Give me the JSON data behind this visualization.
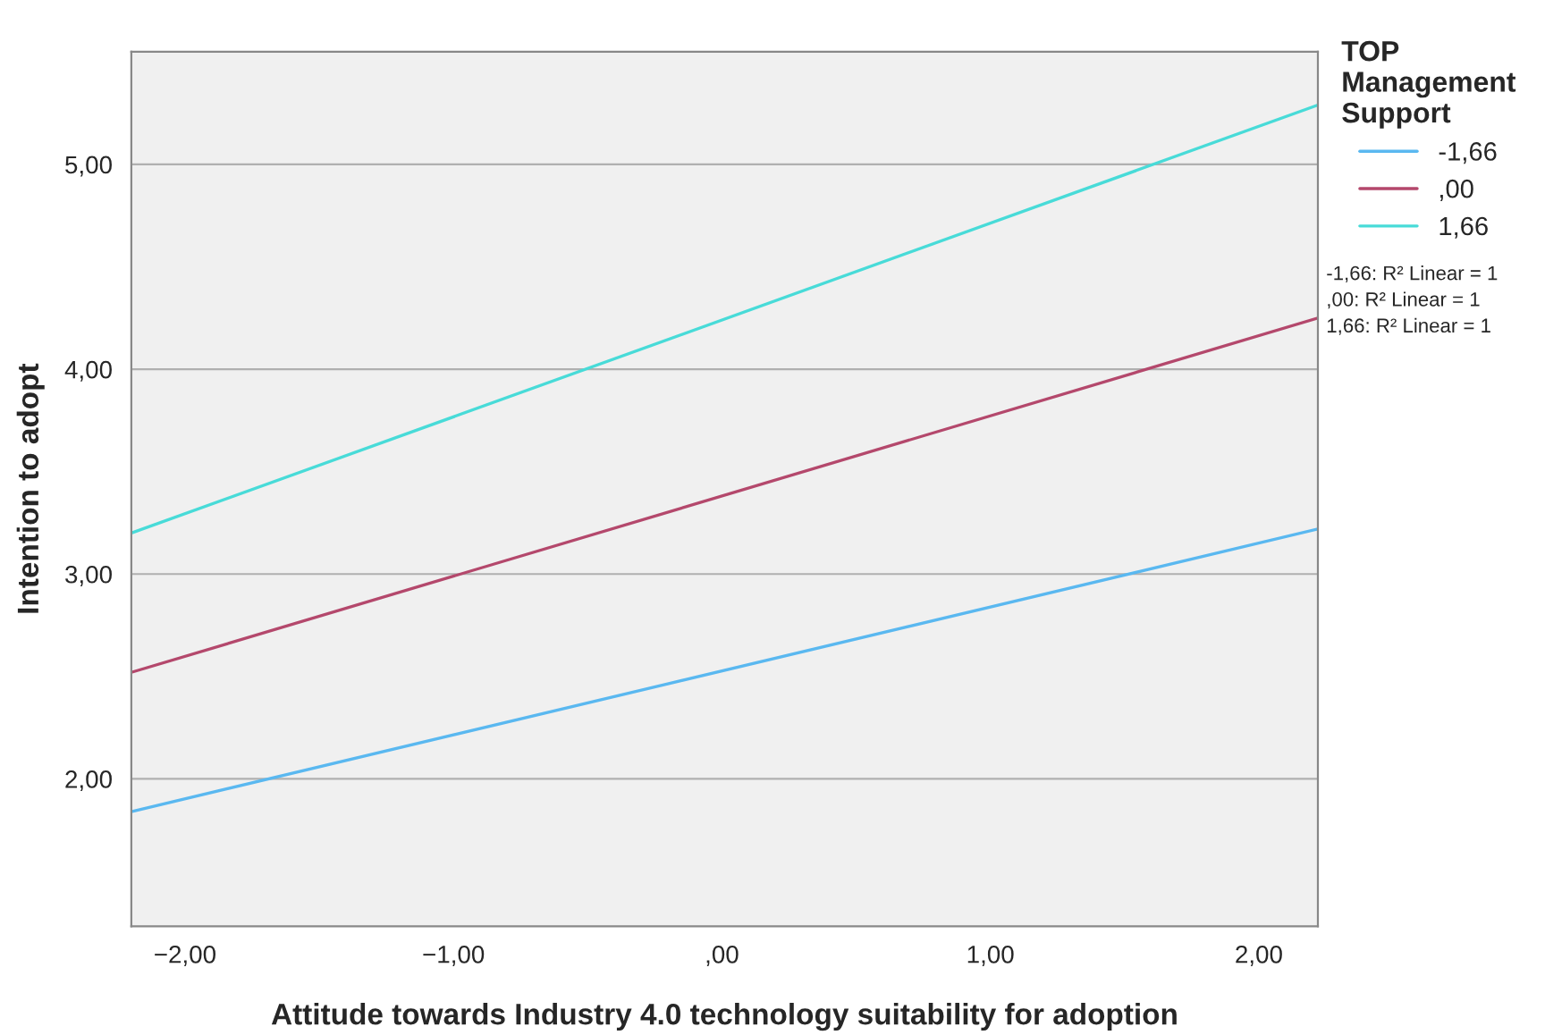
{
  "chart_data": {
    "type": "line",
    "xlabel": "Attitude towards Industry 4.0 technology suitability for adoption",
    "ylabel": "Intention to adopt",
    "legend_title": "TOP\nManagement\nSupport",
    "x": [
      -2.2,
      2.22
    ],
    "series": [
      {
        "name": "-1,66",
        "color": "#5ab8f0",
        "values": [
          1.84,
          3.22
        ]
      },
      {
        "name": ",00",
        "color": "#b4486c",
        "values": [
          2.52,
          4.25
        ]
      },
      {
        "name": "1,66",
        "color": "#48dbd8",
        "values": [
          3.2,
          5.29
        ]
      }
    ],
    "xlim": [
      -2.2,
      2.22
    ],
    "ylim": [
      1.28,
      5.55
    ],
    "xticks": [
      {
        "value": -2,
        "label": "−2,00"
      },
      {
        "value": -1,
        "label": "−1,00"
      },
      {
        "value": 0,
        "label": ",00"
      },
      {
        "value": 1,
        "label": "1,00"
      },
      {
        "value": 2,
        "label": "2,00"
      }
    ],
    "yticks": [
      {
        "value": 2,
        "label": "2,00"
      },
      {
        "value": 3,
        "label": "3,00"
      },
      {
        "value": 4,
        "label": "4,00"
      },
      {
        "value": 5,
        "label": "5,00"
      }
    ],
    "grid": "y",
    "legend": "top right",
    "marker": "none",
    "line_style": "solid",
    "annotations": [
      "-1,66: R² Linear = 1",
      ",00: R² Linear = 1",
      "1,66: R² Linear = 1"
    ]
  }
}
